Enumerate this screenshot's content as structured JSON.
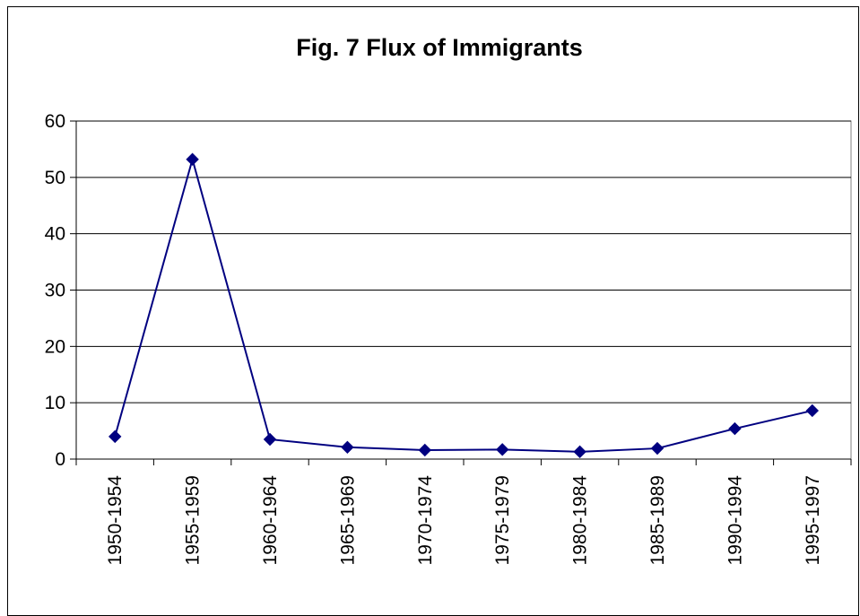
{
  "chart_data": {
    "type": "line",
    "title": "Fig. 7 Flux of Immigrants",
    "xlabel": "",
    "ylabel": "",
    "categories": [
      "1950-1954",
      "1955-1959",
      "1960-1964",
      "1965-1969",
      "1970-1974",
      "1975-1979",
      "1980-1984",
      "1985-1989",
      "1990-1994",
      "1995-1997"
    ],
    "series": [
      {
        "values": [
          4.0,
          53.2,
          3.5,
          2.1,
          1.6,
          1.7,
          1.3,
          1.9,
          5.4,
          8.6
        ],
        "color": "#000080",
        "marker": "diamond"
      }
    ],
    "ylim": [
      0,
      60
    ],
    "yticks": [
      "0",
      "10",
      "20",
      "30",
      "40",
      "50",
      "60"
    ],
    "grid": true,
    "legend": "none"
  }
}
